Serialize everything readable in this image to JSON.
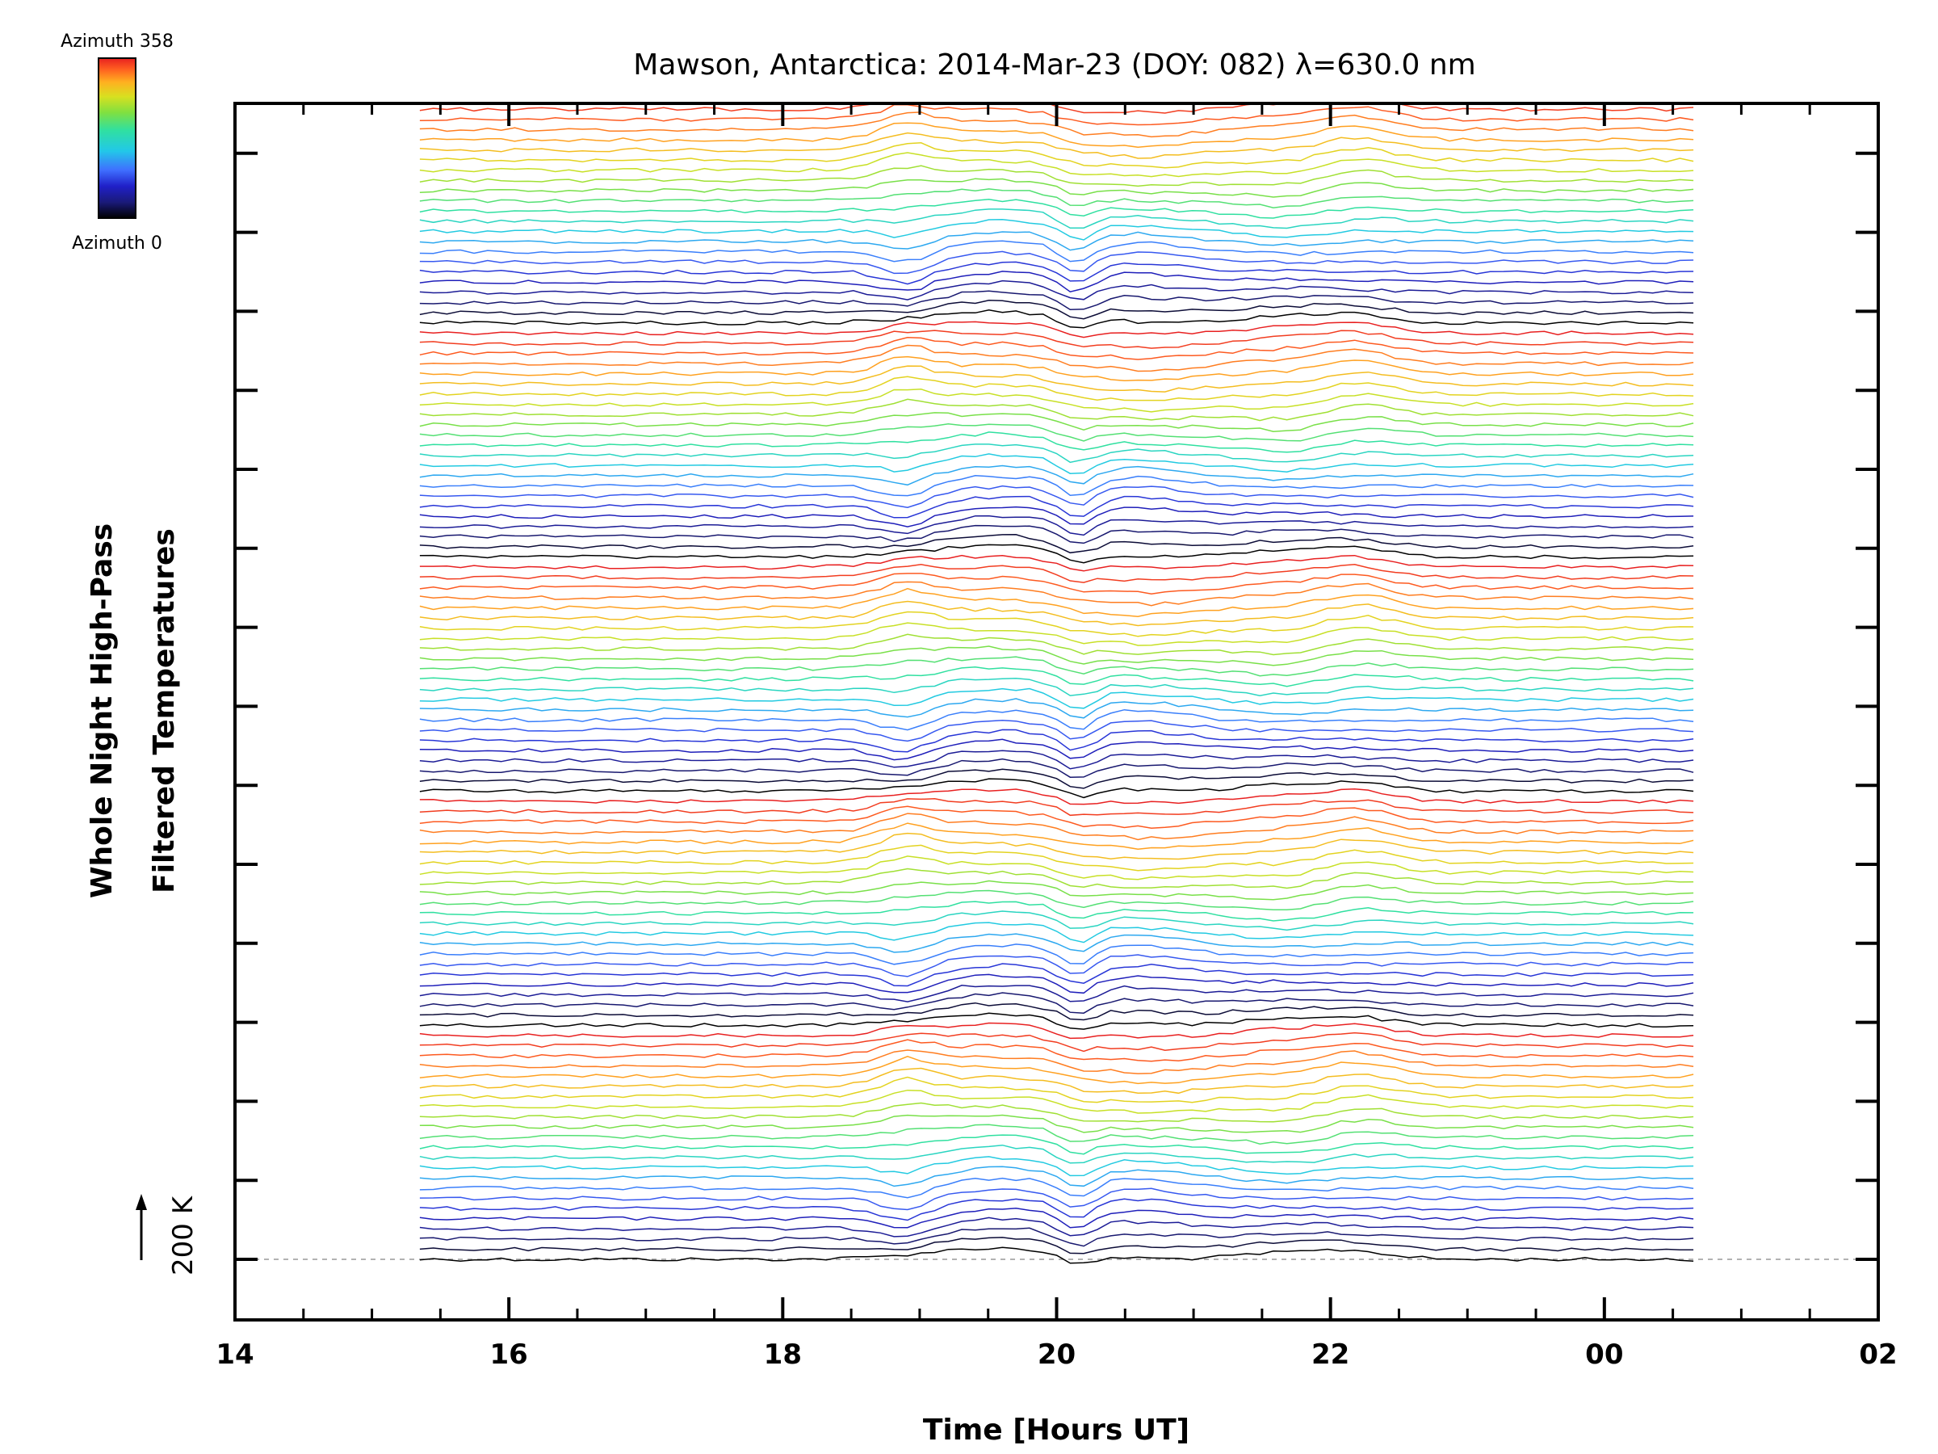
{
  "chart_data": {
    "type": "line",
    "title": "Mawson, Antarctica: 2014-Mar-23 (DOY: 082) λ=630.0 nm",
    "xlabel": "Time [Hours UT]",
    "ylabel_line1": "Whole Night High-Pass",
    "ylabel_line2": "Filtered Temperatures",
    "x_ticks": [
      {
        "hour": 14,
        "label": "14"
      },
      {
        "hour": 16,
        "label": "16"
      },
      {
        "hour": 18,
        "label": "18"
      },
      {
        "hour": 20,
        "label": "20"
      },
      {
        "hour": 22,
        "label": "22"
      },
      {
        "hour": 24,
        "label": "00"
      },
      {
        "hour": 26,
        "label": "02"
      }
    ],
    "xlim": [
      14,
      26
    ],
    "data_range_hours": [
      15.35,
      24.65
    ],
    "scale_bar": {
      "label": "200 K",
      "kelvin": 200
    },
    "colorbar": {
      "top_label": "Azimuth  358",
      "bottom_label": "Azimuth  0",
      "colormap": "rainbow"
    },
    "num_traces": 115,
    "traces_per_group": 23,
    "trace_offset_kelvin": 70,
    "baseline_dashed": true,
    "grid": false,
    "legend": "none",
    "colors": {
      "rainbow_stops": [
        "#000000",
        "#1a1a7a",
        "#2020c8",
        "#3f6fff",
        "#22c8e8",
        "#30e0a0",
        "#80e040",
        "#d8e020",
        "#ffb020",
        "#ff6020",
        "#e82020"
      ]
    }
  }
}
